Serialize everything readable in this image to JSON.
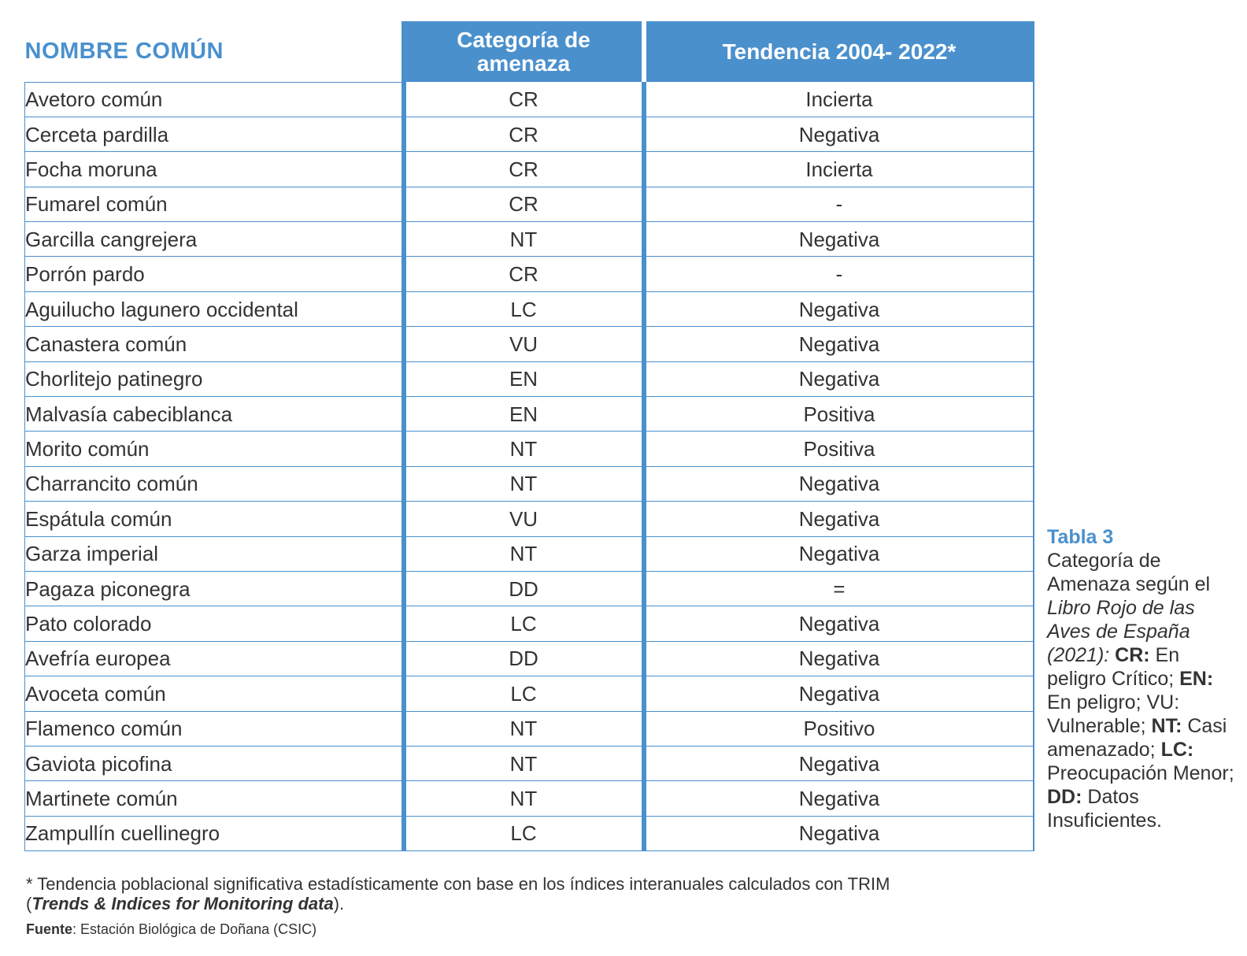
{
  "table": {
    "headers": {
      "name": "NOMBRE COMÚN",
      "category_line1": "Categoría de",
      "category_line2": "amenaza",
      "trend": "Tendencia 2004- 2022*"
    },
    "rows": [
      {
        "name": "Avetoro común",
        "category": "CR",
        "trend": "Incierta"
      },
      {
        "name": "Cerceta pardilla",
        "category": "CR",
        "trend": "Negativa"
      },
      {
        "name": "Focha moruna",
        "category": "CR",
        "trend": "Incierta"
      },
      {
        "name": "Fumarel común",
        "category": "CR",
        "trend": "-"
      },
      {
        "name": "Garcilla cangrejera",
        "category": "NT",
        "trend": "Negativa"
      },
      {
        "name": "Porrón pardo",
        "category": "CR",
        "trend": "-"
      },
      {
        "name": "Aguilucho lagunero occidental",
        "category": "LC",
        "trend": "Negativa"
      },
      {
        "name": "Canastera común",
        "category": "VU",
        "trend": "Negativa"
      },
      {
        "name": "Chorlitejo patinegro",
        "category": "EN",
        "trend": "Negativa"
      },
      {
        "name": "Malvasía cabeciblanca",
        "category": "EN",
        "trend": "Positiva"
      },
      {
        "name": "Morito común",
        "category": "NT",
        "trend": "Positiva"
      },
      {
        "name": "Charrancito común",
        "category": "NT",
        "trend": "Negativa"
      },
      {
        "name": "Espátula común",
        "category": "VU",
        "trend": "Negativa"
      },
      {
        "name": "Garza imperial",
        "category": "NT",
        "trend": "Negativa"
      },
      {
        "name": "Pagaza piconegra",
        "category": "DD",
        "trend": "="
      },
      {
        "name": "Pato colorado",
        "category": "LC",
        "trend": "Negativa"
      },
      {
        "name": "Avefría europea",
        "category": "DD",
        "trend": "Negativa"
      },
      {
        "name": "Avoceta común",
        "category": "LC",
        "trend": "Negativa"
      },
      {
        "name": "Flamenco común",
        "category": "NT",
        "trend": "Positivo"
      },
      {
        "name": "Gaviota picofina",
        "category": "NT",
        "trend": "Negativa"
      },
      {
        "name": "Martinete común",
        "category": "NT",
        "trend": "Negativa"
      },
      {
        "name": "Zampullín cuellinegro",
        "category": "LC",
        "trend": "Negativa"
      }
    ]
  },
  "caption": {
    "title": "Tabla 3",
    "intro": "Categoría de Amenaza según el ",
    "book": "Libro Rojo de las Aves de España (2021):",
    "legend": [
      {
        "code": "CR:",
        "text": " En peligro Crítico;",
        "bold": true
      },
      {
        "code": "EN:",
        "text": " En peligro;",
        "bold": true
      },
      {
        "code": "VU:",
        "text": " Vulnerable;",
        "bold": false
      },
      {
        "code": "NT:",
        "text": " Casi amenazado;",
        "bold": true
      },
      {
        "code": "LC:",
        "text": " Preocupación Menor;",
        "bold": true
      },
      {
        "code": "DD:",
        "text": " Datos Insuficientes.",
        "bold": true
      }
    ]
  },
  "footnote": {
    "text": "* Tendencia poblacional significativa estadísticamente con base en los índices interanuales calculados con TRIM",
    "paren_open": "(",
    "emphasis": "Trends & Indices for Monitoring data",
    "paren_close": ")."
  },
  "source": {
    "label": "Fuente",
    "text": ": Estación Biológica de Doñana (CSIC)"
  },
  "colors": {
    "accent": "#4a90cd",
    "text": "#333333",
    "background": "#ffffff"
  }
}
